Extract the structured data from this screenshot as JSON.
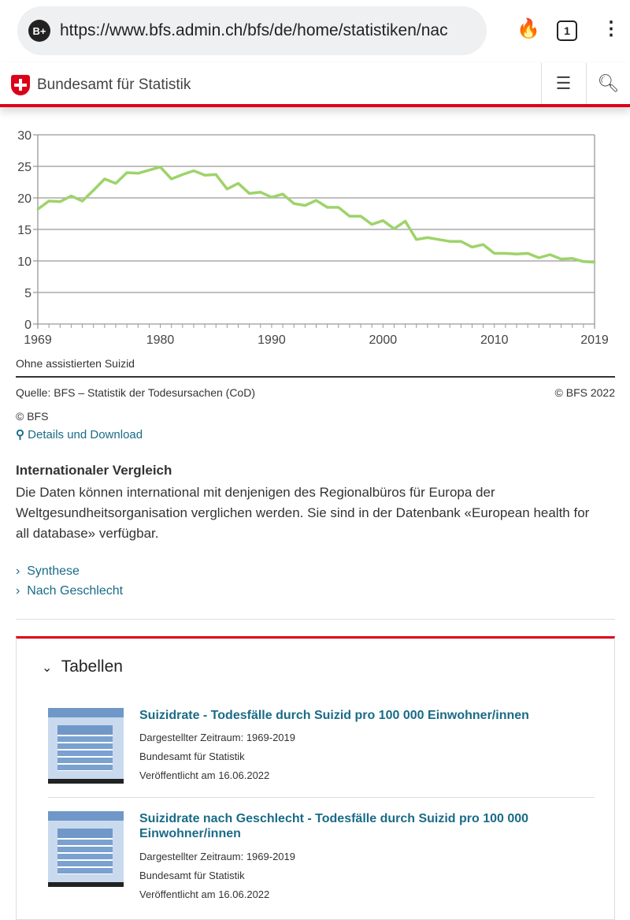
{
  "browser": {
    "badge": "B+",
    "url": "https://www.bfs.admin.ch/bfs/de/home/statistiken/nac",
    "tab_count": "1",
    "icons": [
      "fire-icon",
      "tabs-icon",
      "more-vert-icon"
    ]
  },
  "site": {
    "name": "Bundesamt für Statistik",
    "menu_icon": "hamburger-icon",
    "search_icon": "search-icon",
    "accent": "#dc0018"
  },
  "chart_data": {
    "type": "line",
    "title": "",
    "xlabel": "",
    "ylabel": "",
    "xlim": [
      1969,
      2019
    ],
    "ylim": [
      0,
      30
    ],
    "grid": true,
    "yticks": [
      0,
      5,
      10,
      15,
      20,
      25,
      30
    ],
    "xticks": [
      1969,
      1980,
      1990,
      2000,
      2010,
      2019
    ],
    "color": "#9ed36a",
    "x": [
      1969,
      1970,
      1971,
      1972,
      1973,
      1974,
      1975,
      1976,
      1977,
      1978,
      1979,
      1980,
      1981,
      1982,
      1983,
      1984,
      1985,
      1986,
      1987,
      1988,
      1989,
      1990,
      1991,
      1992,
      1993,
      1994,
      1995,
      1996,
      1997,
      1998,
      1999,
      2000,
      2001,
      2002,
      2003,
      2004,
      2005,
      2006,
      2007,
      2008,
      2009,
      2010,
      2011,
      2012,
      2013,
      2014,
      2015,
      2016,
      2017,
      2018,
      2019
    ],
    "y": [
      18.2,
      19.5,
      19.4,
      20.3,
      19.5,
      21.2,
      23.0,
      22.3,
      24.0,
      23.9,
      24.4,
      24.9,
      23.0,
      23.7,
      24.3,
      23.6,
      23.7,
      21.4,
      22.3,
      20.7,
      20.9,
      20.1,
      20.6,
      19.1,
      18.8,
      19.6,
      18.5,
      18.5,
      17.1,
      17.1,
      15.8,
      16.4,
      15.1,
      16.3,
      13.4,
      13.7,
      13.4,
      13.1,
      13.1,
      12.2,
      12.6,
      11.2,
      11.2,
      11.1,
      11.2,
      10.5,
      11.0,
      10.3,
      10.4,
      9.9,
      9.8
    ]
  },
  "chart_note": "Ohne assistierten Suizid",
  "source": "Quelle: BFS – Statistik der Todesursachen (CoD)",
  "copyright": "© BFS 2022",
  "copyright_short": "© BFS",
  "details_link": "Details und Download",
  "intl": {
    "heading": "Internationaler Vergleich",
    "text": "Die Daten können international mit denjenigen des Regionalbüros für Europa der Weltgesundheitsorganisation verglichen werden. Sie sind in der Datenbank «European health for all database» verfügbar."
  },
  "links": [
    "Synthese",
    "Nach Geschlecht"
  ],
  "tables": {
    "title": "Tabellen",
    "items": [
      {
        "title": "Suizidrate - Todesfälle durch Suizid pro 100 000 Einwohner/innen",
        "period": "Dargestellter Zeitraum: 1969-2019",
        "publisher": "Bundesamt für Statistik",
        "published": "Veröffentlicht am 16.06.2022"
      },
      {
        "title": "Suizidrate nach Geschlecht - Todesfälle durch Suizid pro 100 000 Einwohner/innen",
        "period": "Dargestellter Zeitraum: 1969-2019",
        "publisher": "Bundesamt für Statistik",
        "published": "Veröffentlicht am 16.06.2022"
      }
    ]
  }
}
